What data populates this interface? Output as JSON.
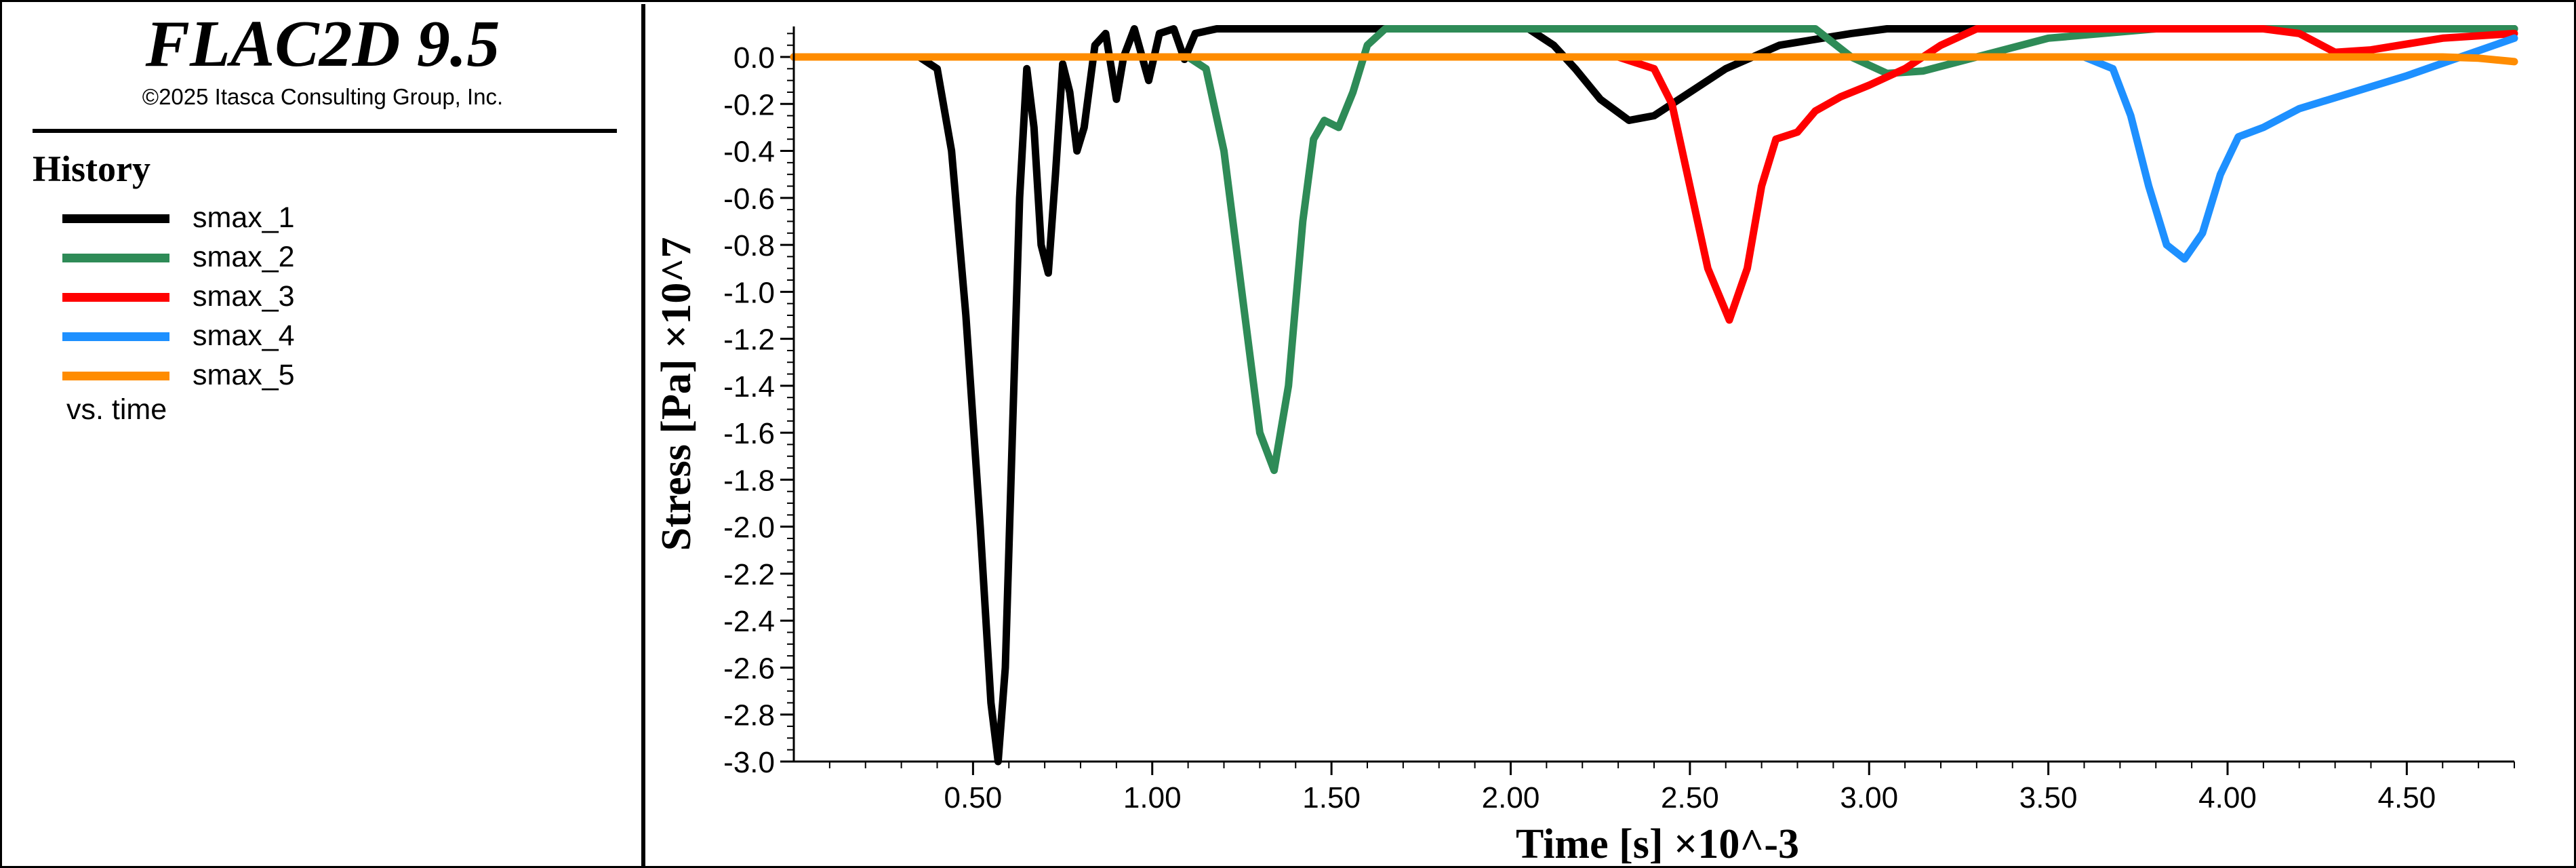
{
  "header": {
    "app_title": "FLAC2D 9.5",
    "copyright": "©2025 Itasca Consulting Group, Inc."
  },
  "legend": {
    "heading": "History",
    "items": [
      {
        "label": "smax_1",
        "color": "#000000"
      },
      {
        "label": "smax_2",
        "color": "#2e8b57"
      },
      {
        "label": "smax_3",
        "color": "#ff0000"
      },
      {
        "label": "smax_4",
        "color": "#1e90ff"
      },
      {
        "label": "smax_5",
        "color": "#ff8c00"
      }
    ],
    "footer": "vs. time"
  },
  "chart_data": {
    "type": "line",
    "xlabel": "Time [s] ×10^-3",
    "ylabel": "Stress [Pa] ×10^7",
    "xlim": [
      0.0,
      4.8
    ],
    "ylim": [
      -3.0,
      0.13
    ],
    "x_ticks": [
      "0.50",
      "1.00",
      "1.50",
      "2.00",
      "2.50",
      "3.00",
      "3.50",
      "4.00",
      "4.50"
    ],
    "y_ticks": [
      "0.0",
      "-0.2",
      "-0.4",
      "-0.6",
      "-0.8",
      "-1.0",
      "-1.2",
      "-1.4",
      "-1.6",
      "-1.8",
      "-2.0",
      "-2.2",
      "-2.4",
      "-2.6",
      "-2.8",
      "-3.0"
    ],
    "grid": false,
    "series": [
      {
        "name": "smax_1",
        "color": "#000000",
        "points": [
          [
            0.0,
            0.0
          ],
          [
            0.35,
            0.0
          ],
          [
            0.4,
            -0.05
          ],
          [
            0.44,
            -0.4
          ],
          [
            0.48,
            -1.1
          ],
          [
            0.52,
            -2.0
          ],
          [
            0.55,
            -2.75
          ],
          [
            0.57,
            -3.0
          ],
          [
            0.59,
            -2.6
          ],
          [
            0.61,
            -1.6
          ],
          [
            0.63,
            -0.6
          ],
          [
            0.65,
            -0.05
          ],
          [
            0.67,
            -0.3
          ],
          [
            0.69,
            -0.8
          ],
          [
            0.71,
            -0.92
          ],
          [
            0.73,
            -0.5
          ],
          [
            0.75,
            -0.03
          ],
          [
            0.77,
            -0.15
          ],
          [
            0.79,
            -0.4
          ],
          [
            0.81,
            -0.3
          ],
          [
            0.84,
            0.05
          ],
          [
            0.87,
            0.1
          ],
          [
            0.9,
            -0.18
          ],
          [
            0.92,
            0.0
          ],
          [
            0.95,
            0.12
          ],
          [
            0.99,
            -0.1
          ],
          [
            1.02,
            0.1
          ],
          [
            1.06,
            0.12
          ],
          [
            1.09,
            -0.01
          ],
          [
            1.12,
            0.1
          ],
          [
            1.18,
            0.12
          ],
          [
            1.5,
            0.12
          ],
          [
            2.05,
            0.12
          ],
          [
            2.12,
            0.05
          ],
          [
            2.18,
            -0.05
          ],
          [
            2.25,
            -0.18
          ],
          [
            2.33,
            -0.27
          ],
          [
            2.4,
            -0.25
          ],
          [
            2.5,
            -0.15
          ],
          [
            2.6,
            -0.05
          ],
          [
            2.75,
            0.05
          ],
          [
            2.95,
            0.1
          ],
          [
            3.05,
            0.12
          ],
          [
            4.8,
            0.12
          ]
        ]
      },
      {
        "name": "smax_2",
        "color": "#2e8b57",
        "points": [
          [
            0.0,
            0.0
          ],
          [
            1.1,
            0.0
          ],
          [
            1.15,
            -0.05
          ],
          [
            1.2,
            -0.4
          ],
          [
            1.25,
            -1.0
          ],
          [
            1.3,
            -1.6
          ],
          [
            1.34,
            -1.76
          ],
          [
            1.38,
            -1.4
          ],
          [
            1.42,
            -0.7
          ],
          [
            1.45,
            -0.35
          ],
          [
            1.48,
            -0.27
          ],
          [
            1.52,
            -0.3
          ],
          [
            1.56,
            -0.15
          ],
          [
            1.6,
            0.05
          ],
          [
            1.65,
            0.12
          ],
          [
            2.5,
            0.12
          ],
          [
            2.85,
            0.12
          ],
          [
            2.95,
            0.0
          ],
          [
            3.05,
            -0.07
          ],
          [
            3.15,
            -0.06
          ],
          [
            3.3,
            0.0
          ],
          [
            3.5,
            0.08
          ],
          [
            3.8,
            0.12
          ],
          [
            4.8,
            0.12
          ]
        ]
      },
      {
        "name": "smax_3",
        "color": "#ff0000",
        "points": [
          [
            0.0,
            0.0
          ],
          [
            2.3,
            0.0
          ],
          [
            2.4,
            -0.05
          ],
          [
            2.45,
            -0.2
          ],
          [
            2.5,
            -0.55
          ],
          [
            2.55,
            -0.9
          ],
          [
            2.61,
            -1.12
          ],
          [
            2.66,
            -0.9
          ],
          [
            2.7,
            -0.55
          ],
          [
            2.74,
            -0.35
          ],
          [
            2.8,
            -0.32
          ],
          [
            2.85,
            -0.23
          ],
          [
            2.92,
            -0.17
          ],
          [
            3.0,
            -0.12
          ],
          [
            3.1,
            -0.05
          ],
          [
            3.2,
            0.05
          ],
          [
            3.3,
            0.12
          ],
          [
            4.1,
            0.12
          ],
          [
            4.2,
            0.1
          ],
          [
            4.3,
            0.02
          ],
          [
            4.4,
            0.03
          ],
          [
            4.6,
            0.08
          ],
          [
            4.8,
            0.1
          ]
        ]
      },
      {
        "name": "smax_4",
        "color": "#1e90ff",
        "points": [
          [
            0.0,
            0.0
          ],
          [
            3.6,
            0.0
          ],
          [
            3.68,
            -0.05
          ],
          [
            3.73,
            -0.25
          ],
          [
            3.78,
            -0.55
          ],
          [
            3.83,
            -0.8
          ],
          [
            3.88,
            -0.86
          ],
          [
            3.93,
            -0.75
          ],
          [
            3.98,
            -0.5
          ],
          [
            4.03,
            -0.34
          ],
          [
            4.1,
            -0.3
          ],
          [
            4.2,
            -0.22
          ],
          [
            4.35,
            -0.15
          ],
          [
            4.5,
            -0.08
          ],
          [
            4.65,
            0.0
          ],
          [
            4.8,
            0.08
          ]
        ]
      },
      {
        "name": "smax_5",
        "color": "#ff8c00",
        "points": [
          [
            0.0,
            0.0
          ],
          [
            4.6,
            0.0
          ],
          [
            4.7,
            -0.005
          ],
          [
            4.8,
            -0.02
          ]
        ]
      }
    ]
  }
}
